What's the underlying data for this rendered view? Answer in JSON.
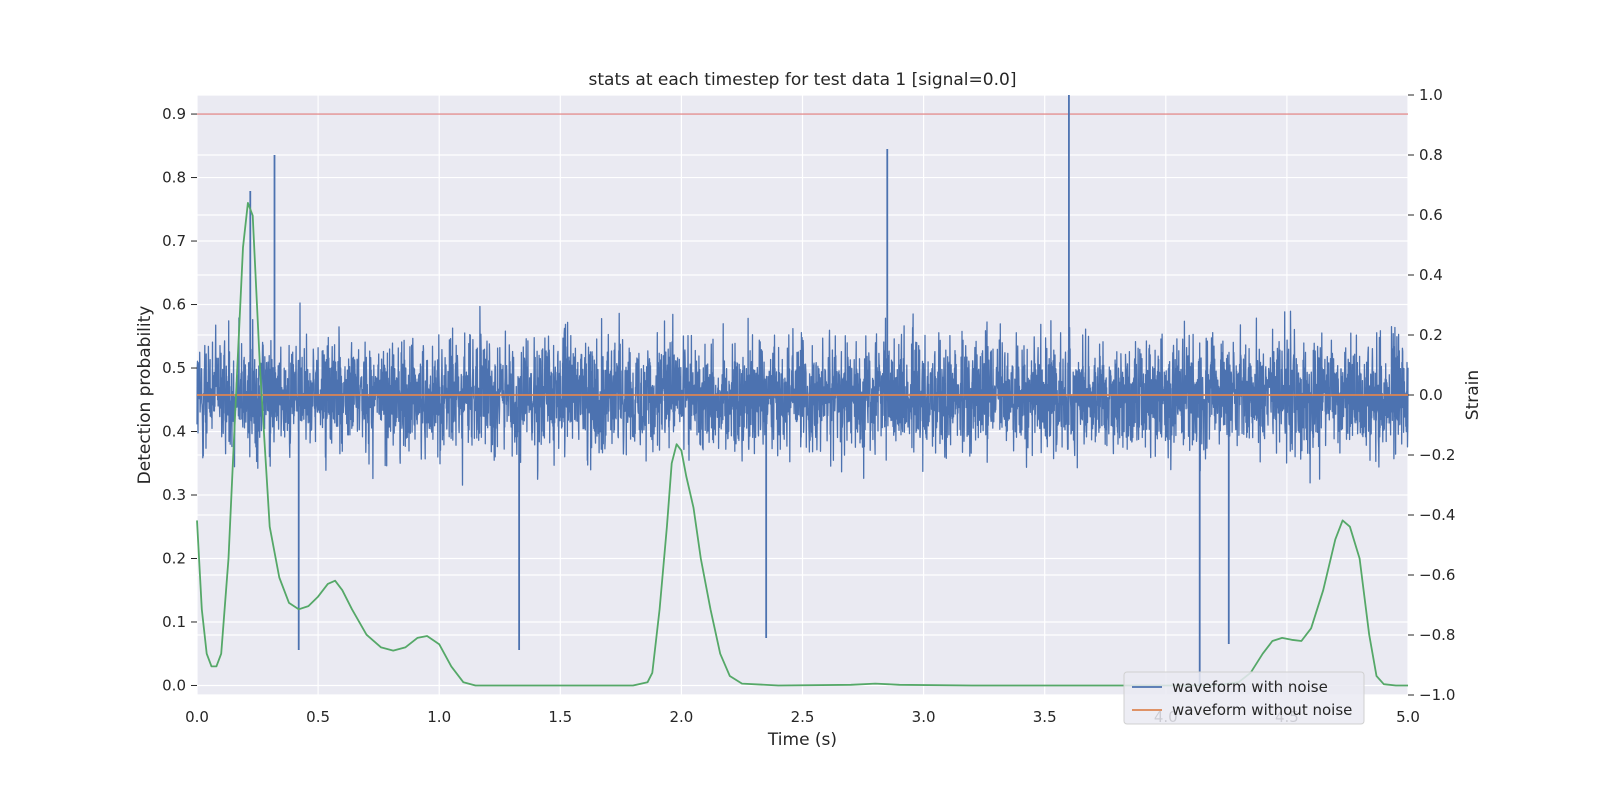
{
  "chart_data": {
    "type": "line",
    "title": "stats at each timestep for test data 1 [signal=0.0]",
    "xlabel": "Time (s)",
    "ylabel": "Detection probability",
    "y2label": "Strain",
    "xlim": [
      0.0,
      5.0
    ],
    "ylim": [
      -0.015,
      0.93
    ],
    "y2lim": [
      -1.0,
      1.0
    ],
    "xticks": [
      "0.0",
      "0.5",
      "1.0",
      "1.5",
      "2.0",
      "2.5",
      "3.0",
      "3.5",
      "4.0",
      "4.5",
      "5.0"
    ],
    "yticks": [
      "0.0",
      "0.1",
      "0.2",
      "0.3",
      "0.4",
      "0.5",
      "0.6",
      "0.7",
      "0.8",
      "0.9"
    ],
    "y2ticks": [
      "−1.0",
      "−0.8",
      "−0.6",
      "−0.4",
      "−0.2",
      "0.0",
      "0.2",
      "0.4",
      "0.6",
      "0.8",
      "1.0"
    ],
    "grid": true,
    "legend_position": "lower-right",
    "threshold": {
      "axis": "left",
      "y": 0.9,
      "color": "#e07b7b"
    },
    "series": [
      {
        "name": "waveform with noise",
        "axis": "right",
        "color": "#4c72b0",
        "noise_band": [
          -0.35,
          0.35
        ],
        "notable_peaks": [
          {
            "x": 0.22,
            "y": 0.68
          },
          {
            "x": 0.32,
            "y": 0.8
          },
          {
            "x": 2.85,
            "y": 0.82
          },
          {
            "x": 3.6,
            "y": 1.0
          },
          {
            "x": 0.42,
            "y": -0.85
          },
          {
            "x": 1.33,
            "y": -0.85
          },
          {
            "x": 2.35,
            "y": -0.81
          },
          {
            "x": 4.14,
            "y": -0.97
          },
          {
            "x": 4.26,
            "y": -0.83
          }
        ]
      },
      {
        "name": "waveform without noise",
        "axis": "right",
        "color": "#dd8452",
        "y_constant": 0.0
      },
      {
        "name": "",
        "axis": "left",
        "color": "#55a868",
        "x": [
          0.0,
          0.02,
          0.04,
          0.06,
          0.08,
          0.1,
          0.13,
          0.16,
          0.19,
          0.21,
          0.23,
          0.26,
          0.3,
          0.34,
          0.38,
          0.42,
          0.46,
          0.5,
          0.54,
          0.57,
          0.6,
          0.64,
          0.7,
          0.76,
          0.81,
          0.86,
          0.91,
          0.95,
          1.0,
          1.05,
          1.1,
          1.15,
          1.3,
          1.6,
          1.8,
          1.86,
          1.88,
          1.91,
          1.94,
          1.96,
          1.98,
          2.0,
          2.02,
          2.05,
          2.08,
          2.12,
          2.16,
          2.2,
          2.25,
          2.4,
          2.7,
          2.8,
          2.9,
          3.2,
          3.6,
          4.0,
          4.2,
          4.3,
          4.35,
          4.4,
          4.44,
          4.48,
          4.52,
          4.56,
          4.6,
          4.65,
          4.7,
          4.73,
          4.76,
          4.8,
          4.84,
          4.87,
          4.9,
          4.95,
          5.0
        ],
        "y": [
          0.26,
          0.12,
          0.05,
          0.03,
          0.03,
          0.05,
          0.2,
          0.45,
          0.69,
          0.76,
          0.74,
          0.5,
          0.25,
          0.17,
          0.13,
          0.12,
          0.125,
          0.14,
          0.16,
          0.165,
          0.15,
          0.12,
          0.08,
          0.06,
          0.055,
          0.06,
          0.075,
          0.078,
          0.065,
          0.03,
          0.005,
          0.0,
          0.0,
          0.0,
          0.0,
          0.005,
          0.02,
          0.12,
          0.25,
          0.35,
          0.38,
          0.37,
          0.33,
          0.28,
          0.2,
          0.12,
          0.05,
          0.015,
          0.003,
          0.0,
          0.001,
          0.003,
          0.001,
          0.0,
          0.0,
          0.0,
          0.0,
          0.005,
          0.02,
          0.05,
          0.07,
          0.075,
          0.072,
          0.07,
          0.09,
          0.15,
          0.23,
          0.26,
          0.25,
          0.2,
          0.08,
          0.015,
          0.002,
          0.0,
          0.0
        ]
      }
    ]
  }
}
